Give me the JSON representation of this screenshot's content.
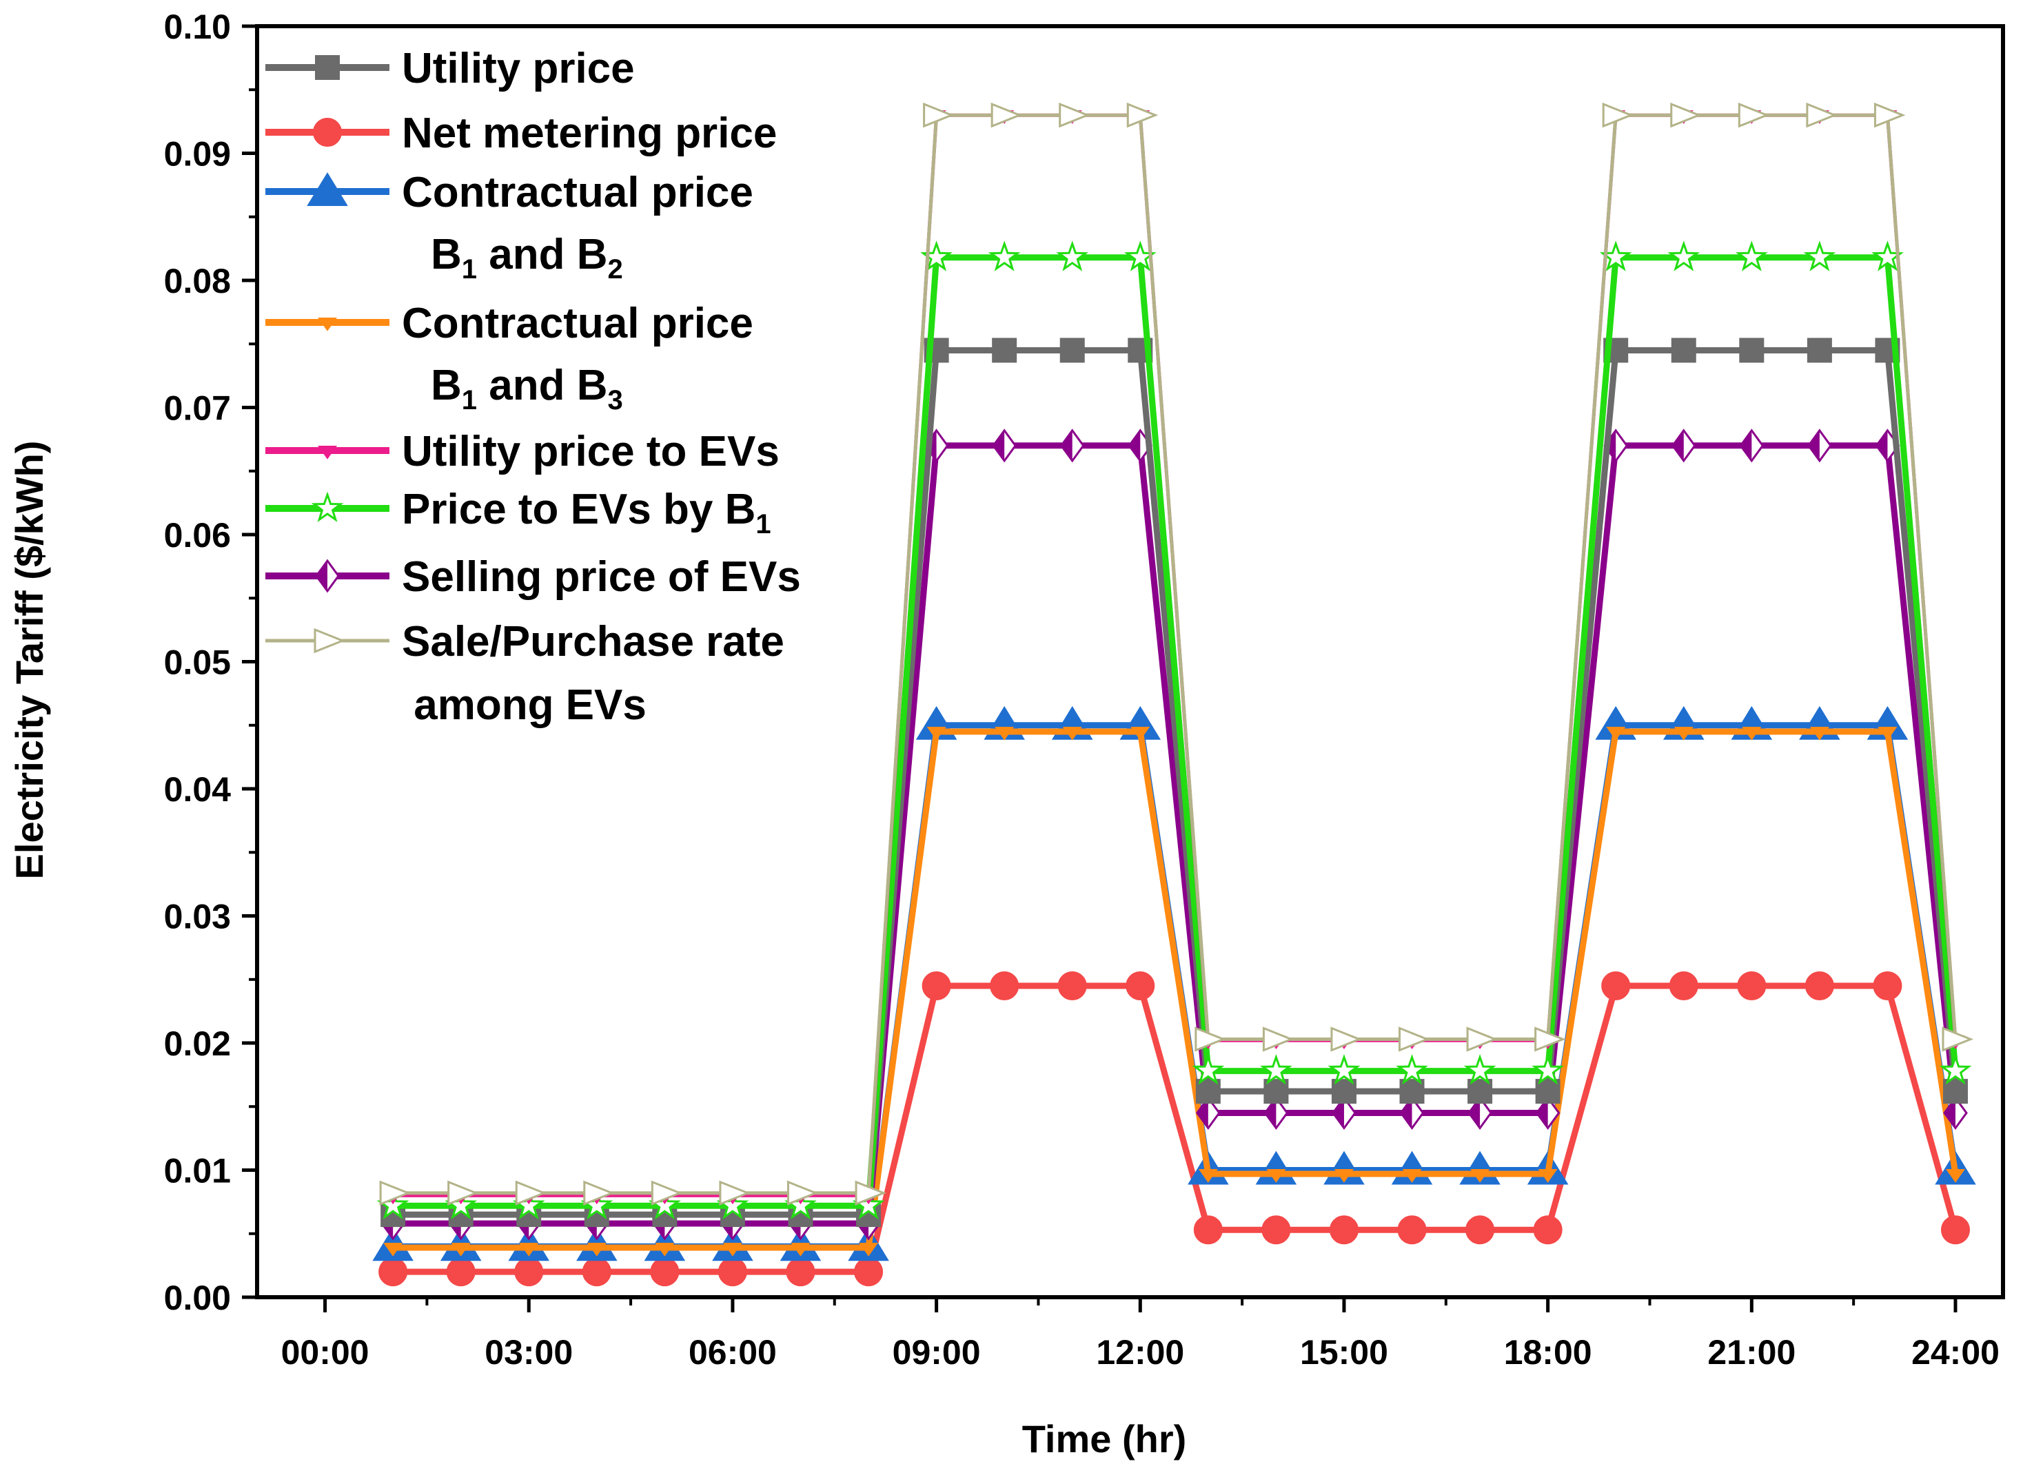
{
  "chart_data": {
    "type": "line",
    "xlabel": "Time (hr)",
    "ylabel": "Electricity Tariff ($/kWh)",
    "xlim": [
      -1,
      24.7
    ],
    "ylim": [
      0.0,
      0.1
    ],
    "x_ticks": [
      {
        "value": 0,
        "label": "00:00"
      },
      {
        "value": 3,
        "label": "03:00"
      },
      {
        "value": 6,
        "label": "06:00"
      },
      {
        "value": 9,
        "label": "09:00"
      },
      {
        "value": 12,
        "label": "12:00"
      },
      {
        "value": 15,
        "label": "15:00"
      },
      {
        "value": 18,
        "label": "18:00"
      },
      {
        "value": 21,
        "label": "21:00"
      },
      {
        "value": 24,
        "label": "24:00"
      }
    ],
    "y_ticks": [
      {
        "value": 0.0,
        "label": "0.00"
      },
      {
        "value": 0.01,
        "label": "0.01"
      },
      {
        "value": 0.02,
        "label": "0.02"
      },
      {
        "value": 0.03,
        "label": "0.03"
      },
      {
        "value": 0.04,
        "label": "0.04"
      },
      {
        "value": 0.05,
        "label": "0.05"
      },
      {
        "value": 0.06,
        "label": "0.06"
      },
      {
        "value": 0.07,
        "label": "0.07"
      },
      {
        "value": 0.08,
        "label": "0.08"
      },
      {
        "value": 0.09,
        "label": "0.09"
      },
      {
        "value": 0.1,
        "label": "0.10"
      }
    ],
    "x": [
      1,
      2,
      3,
      4,
      5,
      6,
      7,
      8,
      9,
      10,
      11,
      12,
      13,
      14,
      15,
      16,
      17,
      18,
      19,
      20,
      21,
      22,
      23,
      24
    ],
    "series": [
      {
        "name": "Utility price",
        "color": "#6b6b6b",
        "marker": "square",
        "marker_fill": "#6b6b6b",
        "values": [
          0.0065,
          0.0065,
          0.0065,
          0.0065,
          0.0065,
          0.0065,
          0.0065,
          0.0065,
          0.0745,
          0.0745,
          0.0745,
          0.0745,
          0.0162,
          0.0162,
          0.0162,
          0.0162,
          0.0162,
          0.0162,
          0.0745,
          0.0745,
          0.0745,
          0.0745,
          0.0745,
          0.0162
        ]
      },
      {
        "name": "Net metering price",
        "color": "#f54848",
        "marker": "circle",
        "marker_fill": "#f54848",
        "values": [
          0.002,
          0.002,
          0.002,
          0.002,
          0.002,
          0.002,
          0.002,
          0.002,
          0.0245,
          0.0245,
          0.0245,
          0.0245,
          0.0053,
          0.0053,
          0.0053,
          0.0053,
          0.0053,
          0.0053,
          0.0245,
          0.0245,
          0.0245,
          0.0245,
          0.0245,
          0.0053
        ]
      },
      {
        "name": "Contractual price",
        "subtitle": "B1 and B2",
        "color": "#1f6fd1",
        "marker": "triangle-up",
        "marker_fill": "#1f6fd1",
        "values": [
          0.004,
          0.004,
          0.004,
          0.004,
          0.004,
          0.004,
          0.004,
          0.004,
          0.045,
          0.045,
          0.045,
          0.045,
          0.01,
          0.01,
          0.01,
          0.01,
          0.01,
          0.01,
          0.045,
          0.045,
          0.045,
          0.045,
          0.045,
          0.01
        ]
      },
      {
        "name": "Contractual price",
        "subtitle": "B1 and B3",
        "color": "#ff8a12",
        "marker": "triangle-down",
        "marker_fill": "#ff8a12",
        "values": [
          0.0039,
          0.0039,
          0.0039,
          0.0039,
          0.0039,
          0.0039,
          0.0039,
          0.0039,
          0.0445,
          0.0445,
          0.0445,
          0.0445,
          0.0097,
          0.0097,
          0.0097,
          0.0097,
          0.0097,
          0.0097,
          0.0445,
          0.0445,
          0.0445,
          0.0445,
          0.0445,
          0.0097
        ]
      },
      {
        "name": "Utility price to EVs",
        "color": "#ec1c8c",
        "marker": "triangle-down",
        "marker_fill": "#ec1c8c",
        "values": [
          0.008,
          0.008,
          0.008,
          0.008,
          0.008,
          0.008,
          0.008,
          0.008,
          0.093,
          0.093,
          0.093,
          0.093,
          0.0202,
          0.0202,
          0.0202,
          0.0202,
          0.0202,
          0.0202,
          0.093,
          0.093,
          0.093,
          0.093,
          0.093,
          0.0202
        ]
      },
      {
        "name": "Price to EVs by B1",
        "color": "#22dd11",
        "marker": "star",
        "marker_fill": "none",
        "values": [
          0.0072,
          0.0072,
          0.0072,
          0.0072,
          0.0072,
          0.0072,
          0.0072,
          0.0072,
          0.0818,
          0.0818,
          0.0818,
          0.0818,
          0.0178,
          0.0178,
          0.0178,
          0.0178,
          0.0178,
          0.0178,
          0.0818,
          0.0818,
          0.0818,
          0.0818,
          0.0818,
          0.0178
        ]
      },
      {
        "name": "Selling price of EVs",
        "color": "#8b008b",
        "marker": "diamond-half",
        "marker_fill": "#8b008b",
        "values": [
          0.0058,
          0.0058,
          0.0058,
          0.0058,
          0.0058,
          0.0058,
          0.0058,
          0.0058,
          0.067,
          0.067,
          0.067,
          0.067,
          0.0145,
          0.0145,
          0.0145,
          0.0145,
          0.0145,
          0.0145,
          0.067,
          0.067,
          0.067,
          0.067,
          0.067,
          0.0145
        ]
      },
      {
        "name": "Sale/Purchase rate",
        "subtitle": "among EVs",
        "color": "#b3b389",
        "marker": "triangle-right",
        "marker_fill": "none",
        "values": [
          0.0082,
          0.0082,
          0.0082,
          0.0082,
          0.0082,
          0.0082,
          0.0082,
          0.0082,
          0.093,
          0.093,
          0.093,
          0.093,
          0.0203,
          0.0203,
          0.0203,
          0.0203,
          0.0203,
          0.0203,
          0.093,
          0.093,
          0.093,
          0.093,
          0.093,
          0.0203
        ]
      }
    ],
    "legend": {
      "placement": "top-left",
      "entries": [
        {
          "label": "Utility price"
        },
        {
          "label": "Net metering price"
        },
        {
          "label": "Contractual price",
          "line2_prefix": "B",
          "line2_sub1": "1",
          "line2_mid": " and B",
          "line2_sub2": "2"
        },
        {
          "label": "Contractual price",
          "line2_prefix": "B",
          "line2_sub1": "1",
          "line2_mid": " and B",
          "line2_sub2": "3"
        },
        {
          "label": "Utility price to EVs"
        },
        {
          "label": "Price to EVs by B",
          "label_sub": "1"
        },
        {
          "label": "Selling price of EVs"
        },
        {
          "label": "Sale/Purchase rate",
          "line2_text": " among EVs"
        }
      ]
    },
    "grid": false
  }
}
